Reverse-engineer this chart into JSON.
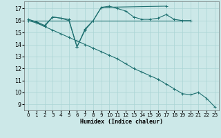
{
  "xlabel": "Humidex (Indice chaleur)",
  "bg_color": "#cce8e8",
  "grid_color": "#aad4d4",
  "line_color": "#1e7070",
  "xlim": [
    -0.5,
    23.5
  ],
  "ylim": [
    8.5,
    17.6
  ],
  "xticks": [
    0,
    1,
    2,
    3,
    4,
    5,
    6,
    7,
    8,
    9,
    10,
    11,
    12,
    13,
    14,
    15,
    16,
    17,
    18,
    19,
    20,
    21,
    22,
    23
  ],
  "yticks": [
    9,
    10,
    11,
    12,
    13,
    14,
    15,
    16,
    17
  ],
  "c1x": [
    0,
    1,
    2,
    3,
    4,
    5,
    6,
    7,
    8,
    9,
    10,
    11,
    12,
    13,
    14,
    15,
    16,
    17,
    18,
    19,
    20
  ],
  "c1y": [
    16.1,
    15.9,
    15.5,
    16.3,
    16.2,
    16.1,
    13.8,
    15.2,
    16.0,
    17.1,
    17.2,
    17.0,
    16.8,
    16.3,
    16.1,
    16.1,
    16.2,
    16.5,
    16.1,
    16.0,
    16.0
  ],
  "c2x": [
    0,
    20
  ],
  "c2y": [
    16.0,
    16.0
  ],
  "c3x": [
    0,
    1,
    2,
    3,
    4,
    5,
    6,
    7,
    8,
    9,
    10,
    11,
    12,
    13,
    14,
    15,
    16,
    17,
    18,
    19,
    20,
    21,
    22,
    23
  ],
  "c3y": [
    16.0,
    15.8,
    15.5,
    15.2,
    14.9,
    14.6,
    14.3,
    14.0,
    13.7,
    13.4,
    13.1,
    12.8,
    12.4,
    12.0,
    11.7,
    11.4,
    11.1,
    10.7,
    10.3,
    9.9,
    9.8,
    10.0,
    9.5,
    8.8
  ],
  "c4x": [
    0,
    1,
    2,
    3,
    4,
    5,
    6,
    7,
    8,
    9,
    17
  ],
  "c4y": [
    16.0,
    15.9,
    15.6,
    16.3,
    16.2,
    16.0,
    13.8,
    15.3,
    16.0,
    17.1,
    17.2
  ]
}
